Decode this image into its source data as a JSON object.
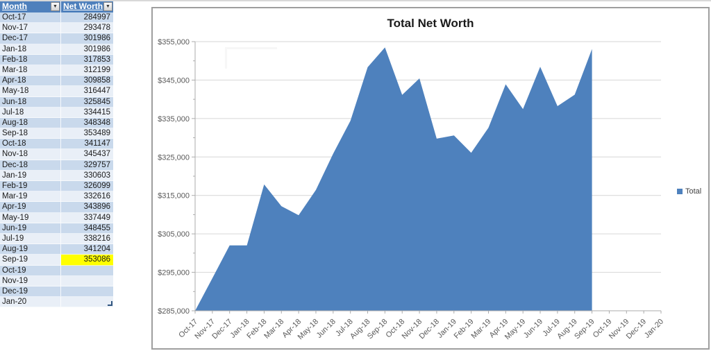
{
  "colors": {
    "header_bg": "#4E80BC",
    "band_even": "#C9D9EC",
    "band_odd": "#E9EFF7",
    "highlight": "#FFFF00",
    "area": "#4E81BD",
    "gridline": "#D6D6D6",
    "axis": "#ABABAB",
    "axis_text": "#595959"
  },
  "table": {
    "columns": [
      {
        "label": "Month"
      },
      {
        "label": "Net Worth"
      }
    ],
    "filter_icon": "▼",
    "rows": [
      {
        "month": "Oct-17",
        "value": "284997"
      },
      {
        "month": "Nov-17",
        "value": "293478"
      },
      {
        "month": "Dec-17",
        "value": "301986"
      },
      {
        "month": "Jan-18",
        "value": "301986"
      },
      {
        "month": "Feb-18",
        "value": "317853"
      },
      {
        "month": "Mar-18",
        "value": "312199"
      },
      {
        "month": "Apr-18",
        "value": "309858"
      },
      {
        "month": "May-18",
        "value": "316447"
      },
      {
        "month": "Jun-18",
        "value": "325845"
      },
      {
        "month": "Jul-18",
        "value": "334415"
      },
      {
        "month": "Aug-18",
        "value": "348348"
      },
      {
        "month": "Sep-18",
        "value": "353489"
      },
      {
        "month": "Oct-18",
        "value": "341147"
      },
      {
        "month": "Nov-18",
        "value": "345437"
      },
      {
        "month": "Dec-18",
        "value": "329757"
      },
      {
        "month": "Jan-19",
        "value": "330603"
      },
      {
        "month": "Feb-19",
        "value": "326099"
      },
      {
        "month": "Mar-19",
        "value": "332616"
      },
      {
        "month": "Apr-19",
        "value": "343896"
      },
      {
        "month": "May-19",
        "value": "337449"
      },
      {
        "month": "Jun-19",
        "value": "348455"
      },
      {
        "month": "Jul-19",
        "value": "338216"
      },
      {
        "month": "Aug-19",
        "value": "341204"
      },
      {
        "month": "Sep-19",
        "value": "353086",
        "highlight": true
      },
      {
        "month": "Oct-19",
        "value": ""
      },
      {
        "month": "Nov-19",
        "value": ""
      },
      {
        "month": "Dec-19",
        "value": ""
      },
      {
        "month": "Jan-20",
        "value": ""
      }
    ]
  },
  "chart_data": {
    "type": "area",
    "title": "Total Net Worth",
    "categories": [
      "Oct-17",
      "Nov-17",
      "Dec-17",
      "Jan-18",
      "Feb-18",
      "Mar-18",
      "Apr-18",
      "May-18",
      "Jun-18",
      "Jul-18",
      "Aug-18",
      "Sep-18",
      "Oct-18",
      "Nov-18",
      "Dec-18",
      "Jan-19",
      "Feb-19",
      "Mar-19",
      "Apr-19",
      "May-19",
      "Jun-19",
      "Jul-19",
      "Aug-19",
      "Sep-19",
      "Oct-19",
      "Nov-19",
      "Dec-19",
      "Jan-20"
    ],
    "series": [
      {
        "name": "Total",
        "values": [
          284997,
          293478,
          301986,
          301986,
          317853,
          312199,
          309858,
          316447,
          325845,
          334415,
          348348,
          353489,
          341147,
          345437,
          329757,
          330603,
          326099,
          332616,
          343896,
          337449,
          348455,
          338216,
          341204,
          353086,
          null,
          null,
          null,
          null
        ]
      }
    ],
    "ylim": [
      285000,
      355000
    ],
    "ytick_step": 10000,
    "ytick_minor_step": 5000,
    "y_tick_prefix": "$",
    "xlabel": "",
    "ylabel": "",
    "grid": true,
    "legend_position": "right"
  }
}
